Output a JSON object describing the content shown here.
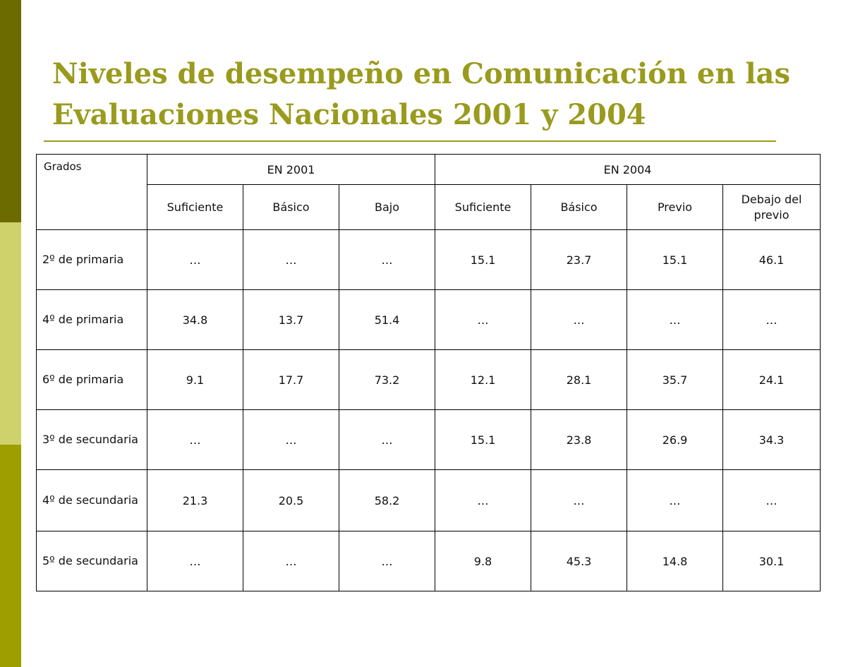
{
  "title": "Niveles de desempeño en Comunicación en las Evaluaciones Nacionales 2001 y 2004",
  "colors": {
    "title": "#9a9a1e",
    "bar_top": "#6b6b00",
    "bar_mid": "#cfd16a",
    "bar_bot": "#9e9e00"
  },
  "table": {
    "corner": "Grados",
    "groups": [
      "EN 2001",
      "EN 2004"
    ],
    "subheaders": [
      "Suficiente",
      "Básico",
      "Bajo",
      "Suficiente",
      "Básico",
      "Previo",
      "Debajo del previo"
    ],
    "rows": [
      {
        "grade": "2º de primaria",
        "values": [
          "…",
          "…",
          "…",
          "15.1",
          "23.7",
          "15.1",
          "46.1"
        ]
      },
      {
        "grade": "4º de primaria",
        "values": [
          "34.8",
          "13.7",
          "51.4",
          "…",
          "…",
          "…",
          "…"
        ]
      },
      {
        "grade": "6º de primaria",
        "values": [
          "9.1",
          "17.7",
          "73.2",
          "12.1",
          "28.1",
          "35.7",
          "24.1"
        ]
      },
      {
        "grade": "3º de secundaria",
        "values": [
          "…",
          "…",
          "…",
          "15.1",
          "23.8",
          "26.9",
          "34.3"
        ]
      },
      {
        "grade": "4º de secundaria",
        "values": [
          "21.3",
          "20.5",
          "58.2",
          "…",
          "…",
          "…",
          "…"
        ]
      },
      {
        "grade": "5º de secundaria",
        "values": [
          "…",
          "…",
          "…",
          "9.8",
          "45.3",
          "14.8",
          "30.1"
        ]
      }
    ]
  }
}
